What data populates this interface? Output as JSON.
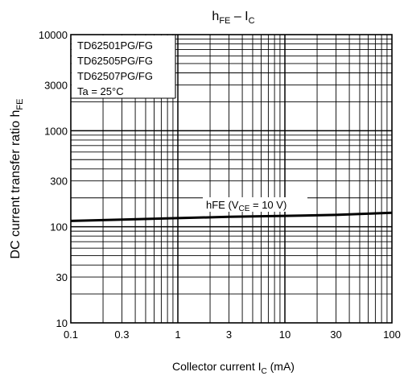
{
  "chart_data": {
    "type": "line",
    "title": {
      "main": "h",
      "sub1": "FE",
      "sep": " – I",
      "sub2": "C"
    },
    "xlabel": {
      "main": "Collector current   I",
      "sub": "C",
      "unit": "   (mA)"
    },
    "ylabel": {
      "main": "DC current transfer ratio h",
      "sub": "FE"
    },
    "x_scale": "log",
    "y_scale": "log",
    "xlim": [
      0.1,
      100
    ],
    "ylim": [
      10,
      10000
    ],
    "x_ticks": [
      {
        "v": 0.1,
        "label": "0.1"
      },
      {
        "v": 0.3,
        "label": "0.3"
      },
      {
        "v": 1,
        "label": "1"
      },
      {
        "v": 3,
        "label": "3"
      },
      {
        "v": 10,
        "label": "10"
      },
      {
        "v": 30,
        "label": "30"
      },
      {
        "v": 100,
        "label": "100"
      }
    ],
    "y_ticks": [
      {
        "v": 10,
        "label": "10"
      },
      {
        "v": 30,
        "label": "30"
      },
      {
        "v": 100,
        "label": "100"
      },
      {
        "v": 300,
        "label": "300"
      },
      {
        "v": 1000,
        "label": "1000"
      },
      {
        "v": 3000,
        "label": "3000"
      },
      {
        "v": 10000,
        "label": "10000"
      }
    ],
    "grid": true,
    "legend_box": {
      "placement": "top-left",
      "lines": [
        "TD62501PG/FG",
        "TD62505PG/FG",
        "TD62507PG/FG",
        "Ta = 25°C"
      ]
    },
    "series": [
      {
        "label": {
          "a": "h",
          "b": "FE",
          "c": " (V",
          "d": "CE",
          "e": " = 10 V)"
        },
        "x": [
          0.1,
          0.3,
          1,
          3,
          10,
          30,
          100
        ],
        "y": [
          115,
          119,
          123,
          127,
          130,
          133,
          140
        ]
      }
    ]
  }
}
